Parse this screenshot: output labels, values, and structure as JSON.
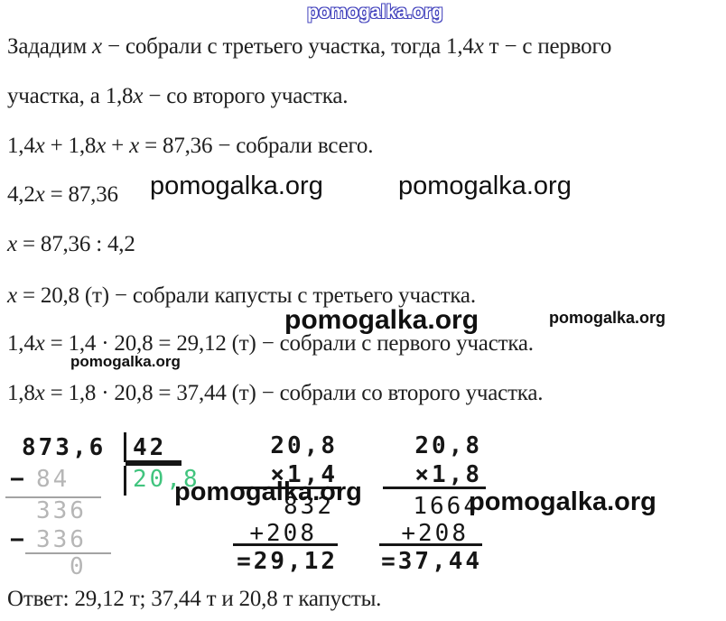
{
  "site_watermark": "pomogalka.org",
  "colors": {
    "accent_green": "#41c47e",
    "accent_red": "#d02c2c",
    "watermark_blue": "#4343bd",
    "faded_gray": "#b6b6b6"
  },
  "solution": {
    "lines": [
      "Зададим x − собрали с третьего участка, тогда 1,4x т − с первого",
      "участка, а 1,8x − со второго участка.",
      "1,4x + 1,8x + x = 87,36 − собрали всего.",
      "4,2x = 87,36",
      "x = 87,36 : 4,2",
      "x = 20,8 (т) − собрали капусты с третьего участка.",
      "1,4x = 1,4 · 20,8 = 29,12 (т) − собрали с первого участка.",
      "1,8x = 1,8 · 20,8 = 37,44 (т) − собрали со второго участка."
    ],
    "answer": "Ответ: 29,12 т; 37,44 т и 20,8 т капусты."
  },
  "division": {
    "dividend": "873,6",
    "divisor": "42",
    "quotient": "20,8",
    "step1_sign": "−",
    "step1_value": "84",
    "step2_value": "336",
    "step3_sign": "−",
    "step3_value": "336",
    "remainder": "0"
  },
  "multiplications": [
    {
      "multiplicand": "20,8",
      "multiplier": "×1,4",
      "partial_1": "832",
      "partial_2": "+208",
      "product": "=29,12"
    },
    {
      "multiplicand": "20,8",
      "multiplier": "×1,8",
      "partial_1": "1664",
      "partial_2": "+208",
      "product": "=37,44"
    }
  ]
}
